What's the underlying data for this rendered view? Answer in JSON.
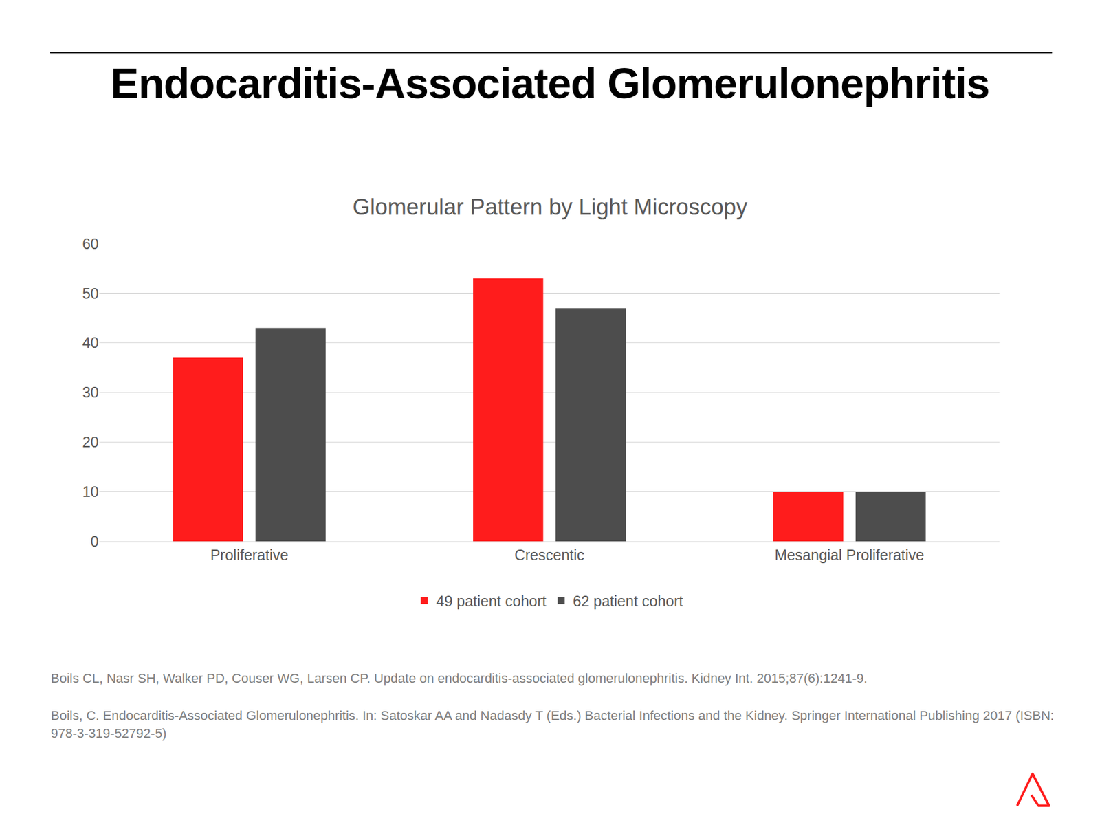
{
  "title": "Endocarditis-Associated Glomerulonephritis",
  "chart_data": {
    "type": "bar",
    "title": "Glomerular Pattern by Light Microscopy",
    "categories": [
      "Proliferative",
      "Crescentic",
      "Mesangial Proliferative"
    ],
    "series": [
      {
        "name": "49 patient cohort",
        "color": "#ff1c1c",
        "values": [
          37,
          53,
          10
        ]
      },
      {
        "name": "62 patient cohort",
        "color": "#4d4d4d",
        "values": [
          43,
          47,
          10
        ]
      }
    ],
    "ylim": [
      0,
      60
    ],
    "yticks": [
      0,
      10,
      20,
      30,
      40,
      50,
      60
    ],
    "grid": true,
    "legend": "bottom"
  },
  "references": [
    "Boils CL, Nasr SH, Walker PD, Couser WG, Larsen CP. Update on endocarditis-associated glomerulonephritis. Kidney Int. 2015;87(6):1241-9.",
    "Boils, C. Endocarditis-Associated Glomerulonephritis. In: Satoskar AA and Nadasdy T (Eds.) Bacterial Infections and the Kidney.  Springer International Publishing 2017 (ISBN: 978-3-319-52792-5)"
  ]
}
